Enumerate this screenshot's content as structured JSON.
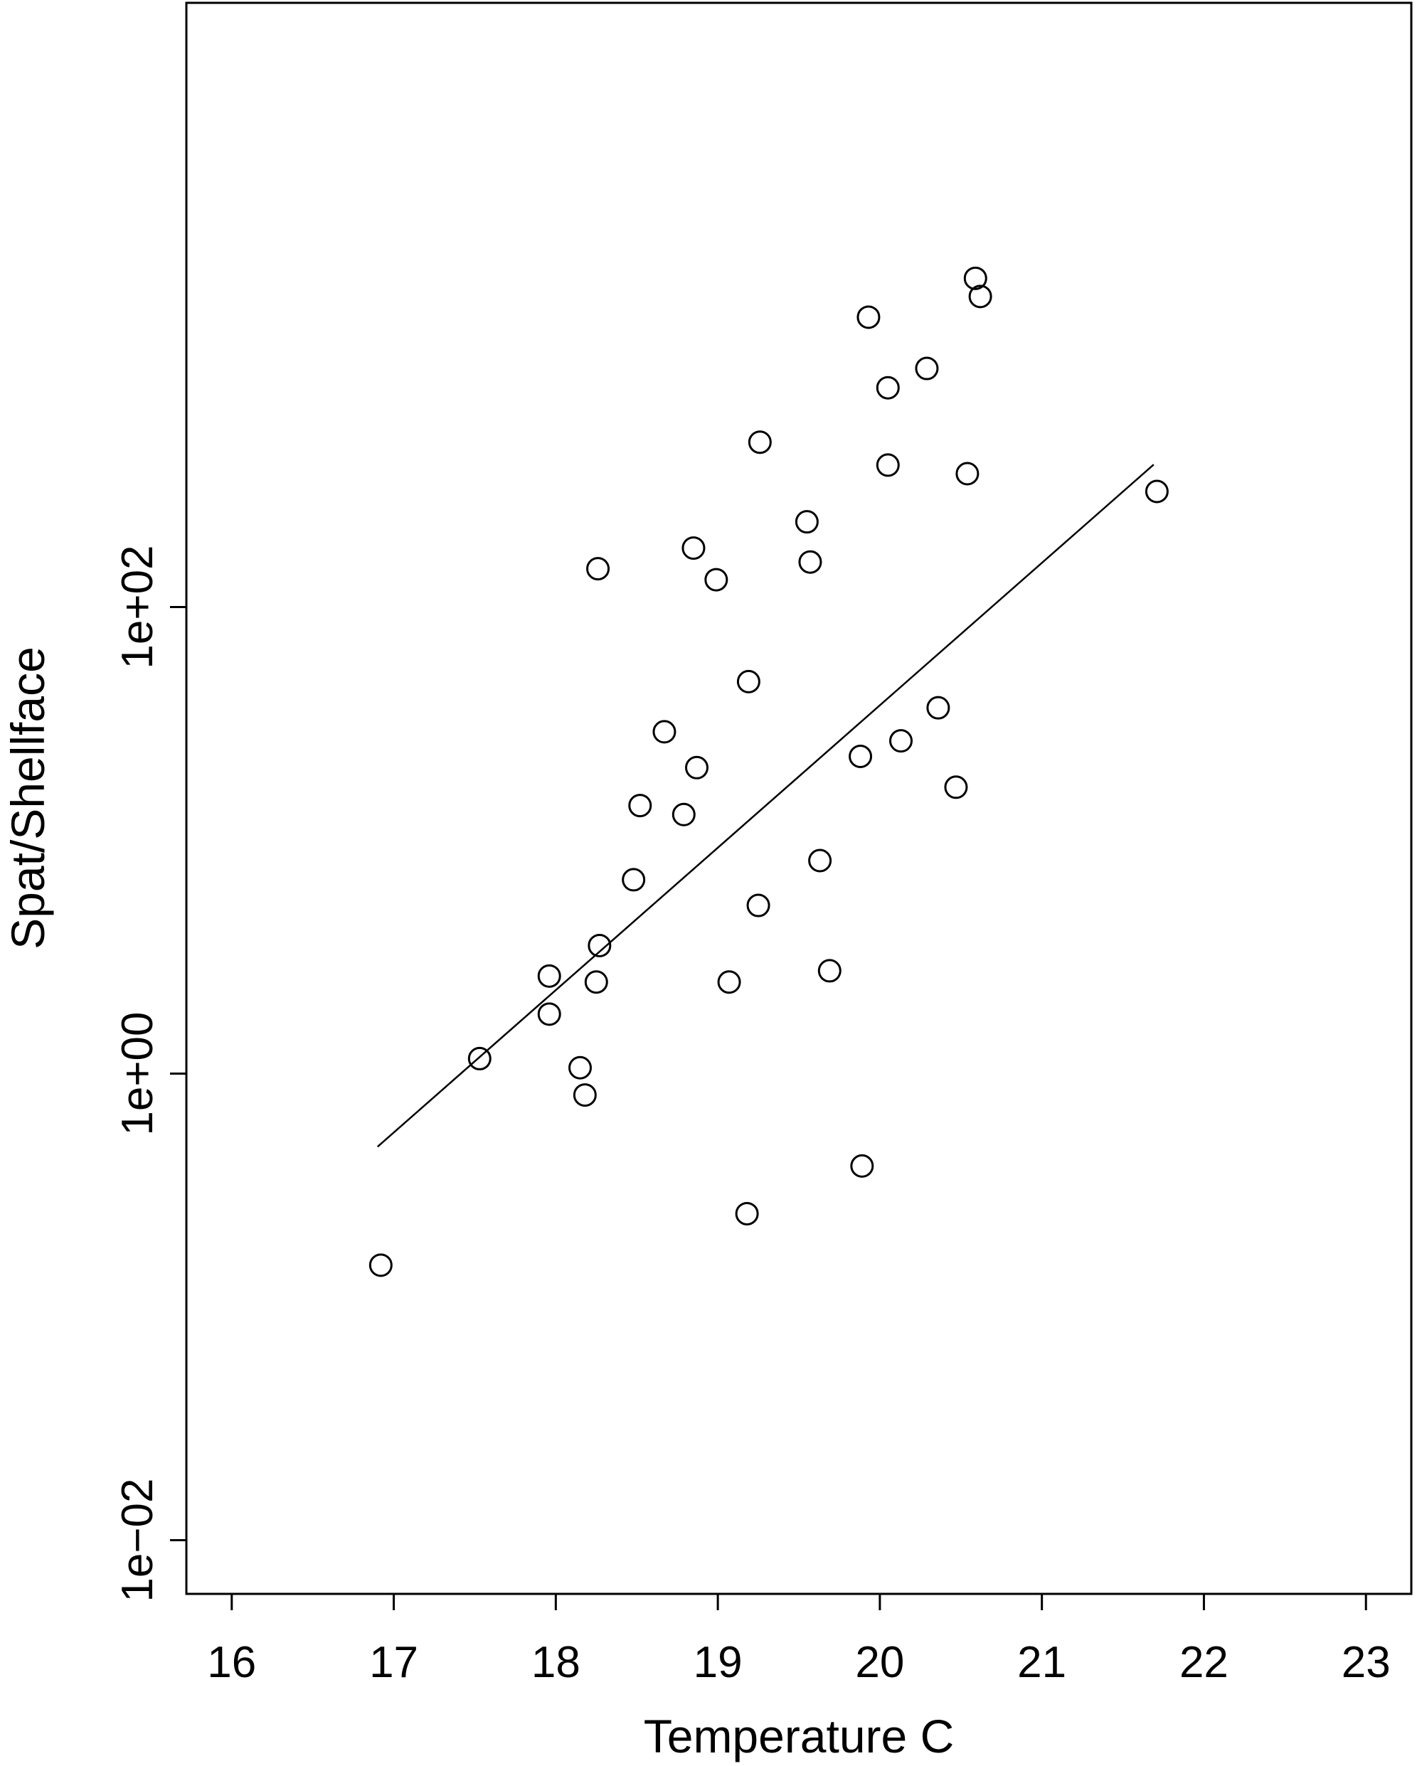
{
  "chart_data": {
    "type": "scatter",
    "title": "",
    "xlabel": "Temperature C",
    "ylabel": "Spat/Shellface",
    "xlim": [
      15.72,
      23.28
    ],
    "ylim_log10": [
      -2.23,
      4.59
    ],
    "y_scale": "log",
    "x_ticks": [
      16,
      17,
      18,
      19,
      20,
      21,
      22,
      23
    ],
    "x_tick_labels": [
      "16",
      "17",
      "18",
      "19",
      "20",
      "21",
      "22",
      "23"
    ],
    "y_ticks": [
      0.01,
      1,
      100
    ],
    "y_tick_labels": [
      "1e−02",
      "1e+00",
      "1e+02"
    ],
    "grid": false,
    "legend": "none",
    "points": [
      {
        "x": 16.92,
        "y": 0.151
      },
      {
        "x": 17.53,
        "y": 1.16
      },
      {
        "x": 17.96,
        "y": 2.62
      },
      {
        "x": 17.96,
        "y": 1.8
      },
      {
        "x": 18.15,
        "y": 1.06
      },
      {
        "x": 18.18,
        "y": 0.81
      },
      {
        "x": 18.25,
        "y": 2.47
      },
      {
        "x": 18.27,
        "y": 3.54
      },
      {
        "x": 18.26,
        "y": 146.0
      },
      {
        "x": 18.48,
        "y": 6.78
      },
      {
        "x": 18.52,
        "y": 14.1
      },
      {
        "x": 18.67,
        "y": 29.2
      },
      {
        "x": 18.79,
        "y": 12.9
      },
      {
        "x": 18.85,
        "y": 179.0
      },
      {
        "x": 18.87,
        "y": 20.5
      },
      {
        "x": 18.99,
        "y": 131.0
      },
      {
        "x": 19.07,
        "y": 2.47
      },
      {
        "x": 19.18,
        "y": 0.251
      },
      {
        "x": 19.19,
        "y": 47.9
      },
      {
        "x": 19.25,
        "y": 5.26
      },
      {
        "x": 19.26,
        "y": 509.0
      },
      {
        "x": 19.55,
        "y": 232.0
      },
      {
        "x": 19.57,
        "y": 156.0
      },
      {
        "x": 19.63,
        "y": 8.19
      },
      {
        "x": 19.69,
        "y": 2.76
      },
      {
        "x": 19.88,
        "y": 22.9
      },
      {
        "x": 19.89,
        "y": 0.402
      },
      {
        "x": 19.93,
        "y": 1748.0
      },
      {
        "x": 20.05,
        "y": 871.0
      },
      {
        "x": 20.05,
        "y": 406.0
      },
      {
        "x": 20.13,
        "y": 26.7
      },
      {
        "x": 20.29,
        "y": 1054.0
      },
      {
        "x": 20.36,
        "y": 37.0
      },
      {
        "x": 20.47,
        "y": 16.9
      },
      {
        "x": 20.54,
        "y": 373.0
      },
      {
        "x": 20.59,
        "y": 2565.0
      },
      {
        "x": 20.62,
        "y": 2145.0
      },
      {
        "x": 21.71,
        "y": 313.0
      }
    ],
    "fit_line": {
      "x": [
        16.9,
        21.69
      ],
      "y": [
        0.486,
        408.0
      ]
    }
  }
}
